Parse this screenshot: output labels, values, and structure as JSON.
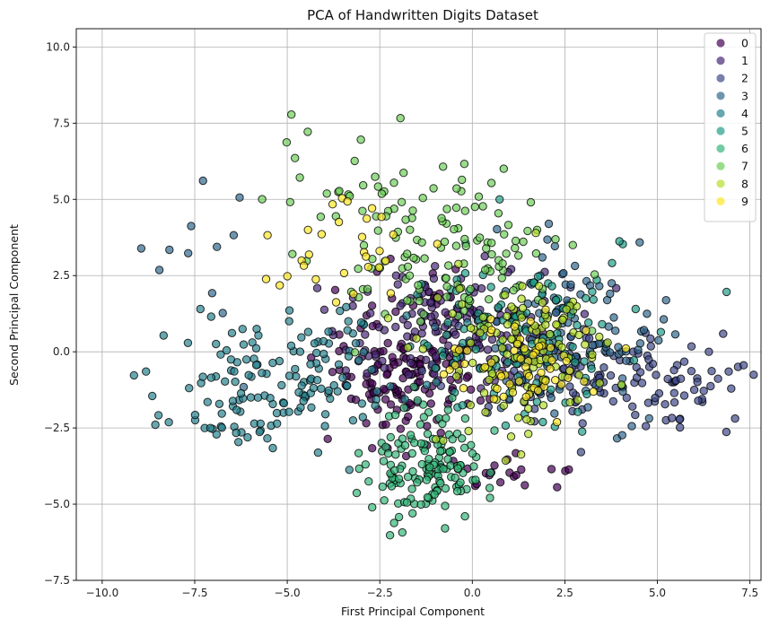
{
  "chart_data": {
    "type": "scatter",
    "title": "PCA of Handwritten Digits Dataset",
    "xlabel": "First Principal Component",
    "ylabel": "Second Principal Component",
    "xlim": [
      -10.7,
      7.8
    ],
    "ylim": [
      -7.5,
      10.6
    ],
    "x_ticks": [
      -10.0,
      -7.5,
      -5.0,
      -2.5,
      0.0,
      2.5,
      5.0,
      7.5
    ],
    "x_tick_labels": [
      "−10.0",
      "−7.5",
      "−5.0",
      "−2.5",
      "0.0",
      "2.5",
      "5.0",
      "7.5"
    ],
    "y_ticks": [
      -7.5,
      -5.0,
      -2.5,
      0.0,
      2.5,
      5.0,
      7.5,
      10.0
    ],
    "y_tick_labels": [
      "−7.5",
      "−5.0",
      "−2.5",
      "0.0",
      "2.5",
      "5.0",
      "7.5",
      "10.0"
    ],
    "grid": true,
    "legend_position": "top-right",
    "colormap": "viridis",
    "marker_edge_color": "#000000",
    "marker_alpha": 0.7,
    "series": [
      {
        "name": "0",
        "color": "#440154",
        "clusters": [
          {
            "cx": -2.0,
            "cy": -1.1,
            "sx": 1.0,
            "sy": 1.0,
            "n": 110
          },
          {
            "cx": -1.5,
            "cy": 1.0,
            "sx": 1.1,
            "sy": 1.2,
            "n": 40
          },
          {
            "cx": 1.5,
            "cy": -3.8,
            "sx": 1.0,
            "sy": 0.4,
            "n": 20
          }
        ]
      },
      {
        "name": "1",
        "color": "#482878",
        "clusters": [
          {
            "cx": -1.0,
            "cy": 1.0,
            "sx": 1.4,
            "sy": 1.0,
            "n": 90
          },
          {
            "cx": 0.5,
            "cy": 0.3,
            "sx": 1.2,
            "sy": 1.0,
            "n": 60
          }
        ]
      },
      {
        "name": "2",
        "color": "#3e4989",
        "clusters": [
          {
            "cx": 3.0,
            "cy": -0.8,
            "sx": 1.8,
            "sy": 1.0,
            "n": 90
          },
          {
            "cx": 5.5,
            "cy": -1.0,
            "sx": 1.0,
            "sy": 0.8,
            "n": 50
          }
        ]
      },
      {
        "name": "3",
        "color": "#31688e",
        "clusters": [
          {
            "cx": 2.5,
            "cy": 0.5,
            "sx": 1.4,
            "sy": 1.5,
            "n": 110
          },
          {
            "cx": -7.5,
            "cy": 2.5,
            "sx": 1.0,
            "sy": 1.8,
            "n": 12
          }
        ]
      },
      {
        "name": "4",
        "color": "#26828e",
        "clusters": [
          {
            "cx": -4.8,
            "cy": -0.6,
            "sx": 1.6,
            "sy": 1.0,
            "n": 120
          },
          {
            "cx": -6.5,
            "cy": -1.8,
            "sx": 1.0,
            "sy": 0.8,
            "n": 40
          }
        ]
      },
      {
        "name": "5",
        "color": "#1f9e89",
        "clusters": [
          {
            "cx": 2.0,
            "cy": 0.3,
            "sx": 1.3,
            "sy": 1.4,
            "n": 80
          },
          {
            "cx": 0.0,
            "cy": 1.0,
            "sx": 1.2,
            "sy": 1.4,
            "n": 40
          }
        ]
      },
      {
        "name": "6",
        "color": "#35b779",
        "clusters": [
          {
            "cx": -1.3,
            "cy": -3.8,
            "sx": 0.8,
            "sy": 0.9,
            "n": 150
          }
        ]
      },
      {
        "name": "7",
        "color": "#6ece58",
        "clusters": [
          {
            "cx": -1.5,
            "cy": 4.2,
            "sx": 1.6,
            "sy": 1.6,
            "n": 100
          },
          {
            "cx": 0.5,
            "cy": 2.5,
            "sx": 1.2,
            "sy": 1.0,
            "n": 50
          }
        ]
      },
      {
        "name": "8",
        "color": "#b5de2b",
        "clusters": [
          {
            "cx": 1.2,
            "cy": 0.0,
            "sx": 1.2,
            "sy": 1.2,
            "n": 120
          }
        ]
      },
      {
        "name": "9",
        "color": "#fde725",
        "clusters": [
          {
            "cx": -3.5,
            "cy": 3.0,
            "sx": 1.2,
            "sy": 1.2,
            "n": 30
          },
          {
            "cx": 1.5,
            "cy": -0.5,
            "sx": 1.0,
            "sy": 0.8,
            "n": 60
          }
        ]
      }
    ]
  }
}
